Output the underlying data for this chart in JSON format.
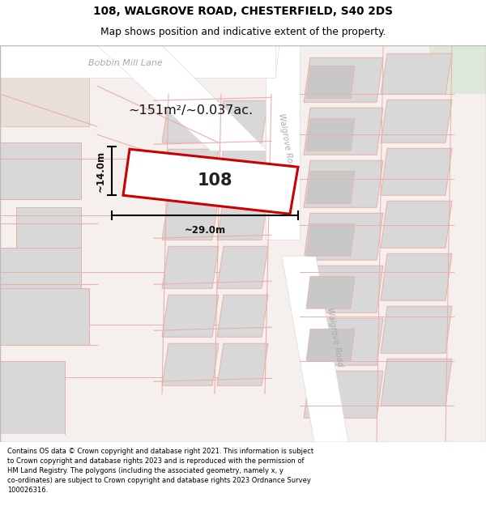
{
  "title_line1": "108, WALGROVE ROAD, CHESTERFIELD, S40 2DS",
  "title_line2": "Map shows position and indicative extent of the property.",
  "footer_text": "Contains OS data © Crown copyright and database right 2021. This information is subject to Crown copyright and database rights 2023 and is reproduced with the permission of HM Land Registry. The polygons (including the associated geometry, namely x, y co-ordinates) are subject to Crown copyright and database rights 2023 Ordnance Survey 100026316.",
  "area_label": "~151m²/~0.037ac.",
  "width_label": "~29.0m",
  "height_label": "~14.0m",
  "property_number": "108",
  "bg_map": "#f5f0ed",
  "road_color": "#ffffff",
  "plot_outline_color": "#cc0000",
  "building_fill": "#d8d8d8",
  "pink_line": "#e8b0a8",
  "title_color": "#000000",
  "footer_color": "#000000",
  "green_top_right": "#dde8d8"
}
